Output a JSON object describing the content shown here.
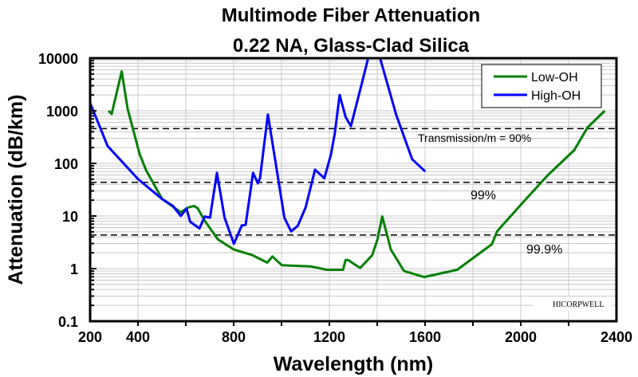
{
  "chart_data": {
    "type": "line",
    "title": "Multimode Fiber Attenuation",
    "subtitle": "0.22 NA, Glass-Clad Silica",
    "xlabel": "Wavelength (nm)",
    "ylabel": "Attenuation (dB/km)",
    "xlim": [
      200,
      2400
    ],
    "ylim": [
      0.1,
      10000
    ],
    "yscale": "log",
    "grid": true,
    "legend_position": "top-right",
    "xticks": [
      "200",
      "400",
      "800",
      "1200",
      "1600",
      "2000",
      "2400"
    ],
    "xtick_values": [
      200,
      400,
      800,
      1200,
      1600,
      2000,
      2400
    ],
    "yticks": [
      "0.1",
      "1",
      "10",
      "100",
      "1000",
      "10000"
    ],
    "ytick_values": [
      0.1,
      1,
      10,
      100,
      1000,
      10000
    ],
    "series": [
      {
        "name": "Low-OH",
        "color": "#008000",
        "x": [
          277,
          290,
          332,
          357,
          407,
          434,
          501,
          579,
          610,
          634,
          650,
          679,
          734,
          801,
          879,
          940,
          962,
          1001,
          1123,
          1190,
          1257,
          1268,
          1279,
          1300,
          1329,
          1379,
          1401,
          1421,
          1457,
          1512,
          1596,
          1734,
          1879,
          1901,
          2001,
          2112,
          2223,
          2279,
          2351
        ],
        "y": [
          1000,
          870,
          5600,
          1080,
          150,
          74,
          21,
          11.8,
          14.5,
          15.5,
          14,
          8.1,
          3.6,
          2.3,
          1.8,
          1.3,
          1.7,
          1.16,
          1.1,
          0.95,
          0.95,
          1.45,
          1.45,
          1.25,
          1.03,
          1.8,
          3.6,
          9.8,
          2.3,
          0.9,
          0.69,
          0.95,
          2.9,
          5.1,
          16.5,
          59,
          178,
          480,
          1000
        ]
      },
      {
        "name": "High-OH",
        "color": "#0000ff",
        "x": [
          201,
          273,
          401,
          501,
          546,
          579,
          603,
          618,
          657,
          679,
          701,
          730,
          762,
          801,
          834,
          850,
          881,
          901,
          910,
          943,
          973,
          1012,
          1040,
          1068,
          1101,
          1140,
          1179,
          1207,
          1223,
          1243,
          1268,
          1290,
          1334,
          1362,
          1387,
          1412,
          1479,
          1546,
          1601
        ],
        "y": [
          1380,
          214,
          50,
          21,
          15.5,
          10,
          13.9,
          7.8,
          5.8,
          9.8,
          9.3,
          66,
          9.3,
          2.96,
          6.6,
          6.8,
          66,
          42,
          52,
          850,
          120,
          9.3,
          5.1,
          6.5,
          14.7,
          76,
          52,
          150,
          380,
          2000,
          760,
          510,
          3100,
          10000,
          25000,
          10000,
          850,
          120,
          70
        ]
      }
    ],
    "reference_lines": [
      {
        "label": "Transmission/m = 90%",
        "value": 457.6
      },
      {
        "label": "99%",
        "value": 43.6
      },
      {
        "label": "99.9%",
        "value": 4.35
      }
    ],
    "watermark": "HICORPWELL"
  }
}
